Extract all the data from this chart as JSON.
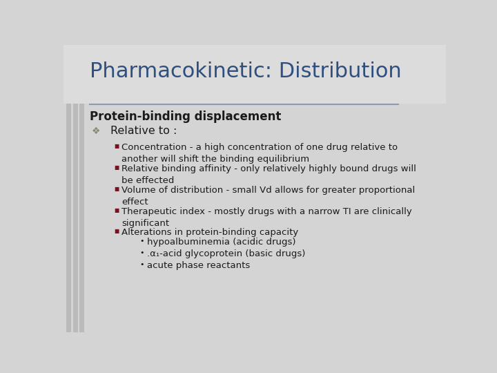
{
  "title": "Pharmacokinetic: Distribution",
  "title_color": "#2F4F7F",
  "title_fontsize": 22,
  "background_color": "#D4D4D4",
  "title_bg_color": "#DCDCDC",
  "subtitle": "Protein-binding displacement",
  "subtitle_fontsize": 12,
  "subtitle_color": "#1a1a1a",
  "level1_bullet": "Relative to :",
  "level1_color": "#1a1a1a",
  "level1_fontsize": 11.5,
  "bullet_color": "#7B1020",
  "bullet_items": [
    "Concentration - a high concentration of one drug relative to\nanother will shift the binding equilibrium",
    "Relative binding affinity - only relatively highly bound drugs will\nbe effected",
    "Volume of distribution - small Vd allows for greater proportional\neffect",
    "Therapeutic index - mostly drugs with a narrow TI are clinically\nsignificant",
    "Alterations in protein-binding capacity"
  ],
  "sub_bullets": [
    "hypoalbuminemia (acidic drugs)",
    ".α₁-acid glycoprotein (basic drugs)",
    "acute phase reactants"
  ],
  "item_fontsize": 9.5,
  "sub_item_fontsize": 9.5,
  "stripe_color": "#BABABA",
  "line_color": "#8A9AB0"
}
